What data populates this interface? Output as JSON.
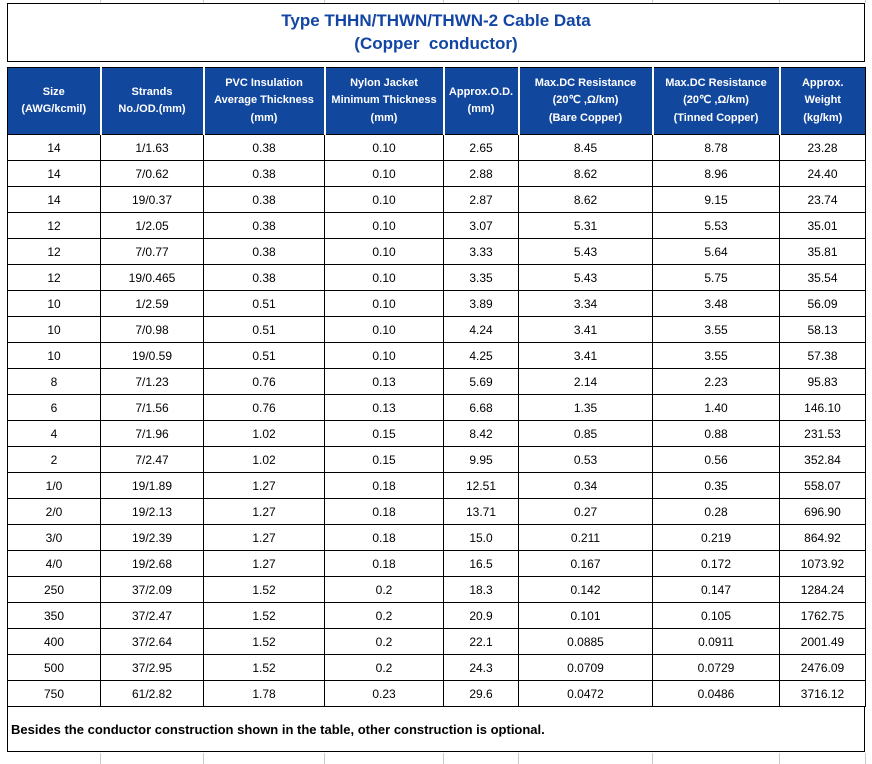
{
  "title": {
    "line1": "Type THHN/THWN/THWN-2 Cable Data",
    "line2": "(Copper  conductor)"
  },
  "colors": {
    "header_bg": "#12479E",
    "title_text": "#1245A4",
    "grid_tick": "#c9c9c9"
  },
  "table": {
    "columns": [
      "Size\n(AWG/kcmil)",
      "Strands\nNo./OD.(mm)",
      "PVC Insulation\nAverage Thickness\n(mm)",
      "Nylon Jacket\nMinimum Thickness\n(mm)",
      "Approx.O.D.\n(mm)",
      "Max.DC Resistance\n(20℃ ,Ω/km)\n(Bare Copper)",
      "Max.DC Resistance\n(20℃ ,Ω/km)\n(Tinned Copper)",
      "Approx.\nWeight\n(kg/km)"
    ],
    "rows": [
      [
        "14",
        "1/1.63",
        "0.38",
        "0.10",
        "2.65",
        "8.45",
        "8.78",
        "23.28"
      ],
      [
        "14",
        "7/0.62",
        "0.38",
        "0.10",
        "2.88",
        "8.62",
        "8.96",
        "24.40"
      ],
      [
        "14",
        "19/0.37",
        "0.38",
        "0.10",
        "2.87",
        "8.62",
        "9.15",
        "23.74"
      ],
      [
        "12",
        "1/2.05",
        "0.38",
        "0.10",
        "3.07",
        "5.31",
        "5.53",
        "35.01"
      ],
      [
        "12",
        "7/0.77",
        "0.38",
        "0.10",
        "3.33",
        "5.43",
        "5.64",
        "35.81"
      ],
      [
        "12",
        "19/0.465",
        "0.38",
        "0.10",
        "3.35",
        "5.43",
        "5.75",
        "35.54"
      ],
      [
        "10",
        "1/2.59",
        "0.51",
        "0.10",
        "3.89",
        "3.34",
        "3.48",
        "56.09"
      ],
      [
        "10",
        "7/0.98",
        "0.51",
        "0.10",
        "4.24",
        "3.41",
        "3.55",
        "58.13"
      ],
      [
        "10",
        "19/0.59",
        "0.51",
        "0.10",
        "4.25",
        "3.41",
        "3.55",
        "57.38"
      ],
      [
        "8",
        "7/1.23",
        "0.76",
        "0.13",
        "5.69",
        "2.14",
        "2.23",
        "95.83"
      ],
      [
        "6",
        "7/1.56",
        "0.76",
        "0.13",
        "6.68",
        "1.35",
        "1.40",
        "146.10"
      ],
      [
        "4",
        "7/1.96",
        "1.02",
        "0.15",
        "8.42",
        "0.85",
        "0.88",
        "231.53"
      ],
      [
        "2",
        "7/2.47",
        "1.02",
        "0.15",
        "9.95",
        "0.53",
        "0.56",
        "352.84"
      ],
      [
        "1/0",
        "19/1.89",
        "1.27",
        "0.18",
        "12.51",
        "0.34",
        "0.35",
        "558.07"
      ],
      [
        "2/0",
        "19/2.13",
        "1.27",
        "0.18",
        "13.71",
        "0.27",
        "0.28",
        "696.90"
      ],
      [
        "3/0",
        "19/2.39",
        "1.27",
        "0.18",
        "15.0",
        "0.211",
        "0.219",
        "864.92"
      ],
      [
        "4/0",
        "19/2.68",
        "1.27",
        "0.18",
        "16.5",
        "0.167",
        "0.172",
        "1073.92"
      ],
      [
        "250",
        "37/2.09",
        "1.52",
        "0.2",
        "18.3",
        "0.142",
        "0.147",
        "1284.24"
      ],
      [
        "350",
        "37/2.47",
        "1.52",
        "0.2",
        "20.9",
        "0.101",
        "0.105",
        "1762.75"
      ],
      [
        "400",
        "37/2.64",
        "1.52",
        "0.2",
        "22.1",
        "0.0885",
        "0.0911",
        "2001.49"
      ],
      [
        "500",
        "37/2.95",
        "1.52",
        "0.2",
        "24.3",
        "0.0709",
        "0.0729",
        "2476.09"
      ],
      [
        "750",
        "61/2.82",
        "1.78",
        "0.23",
        "29.6",
        "0.0472",
        "0.0486",
        "3716.12"
      ]
    ]
  },
  "note": "Besides the conductor construction shown in the table, other construction is optional."
}
